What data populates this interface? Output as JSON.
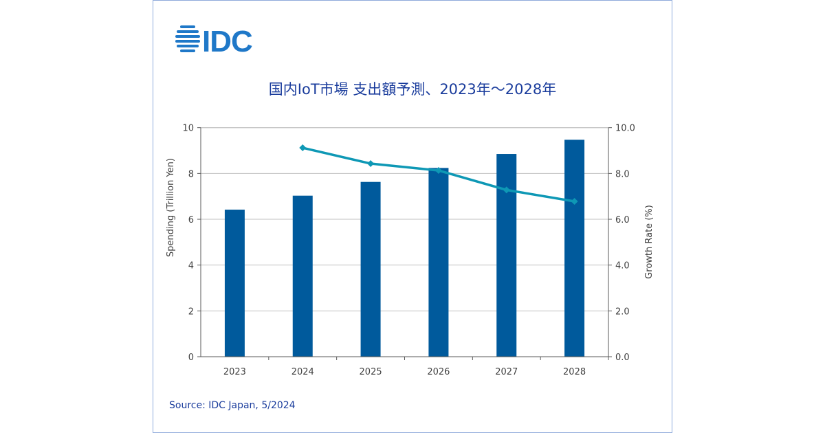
{
  "logo_text": "IDC",
  "colors": {
    "bar": "#005a9c",
    "line": "#0e98b5",
    "title": "#1a3c9c",
    "logo": "#1f78c8"
  },
  "chart_data": {
    "type": "bar+line",
    "title": "国内IoT市場 支出額予測、2023年～2028年",
    "categories": [
      "2023",
      "2024",
      "2025",
      "2026",
      "2027",
      "2028"
    ],
    "series": [
      {
        "type": "bar",
        "axis": "left",
        "values": [
          6.42,
          7.03,
          7.63,
          8.24,
          8.85,
          9.47
        ]
      },
      {
        "type": "line",
        "axis": "right",
        "values": [
          null,
          9.12,
          8.43,
          8.13,
          7.28,
          6.78
        ]
      }
    ],
    "ylabel": "Spending (Trillion Yen)",
    "ylabel_right": "Growth Rate (%)",
    "ylim": [
      0,
      10
    ],
    "ylim_right": [
      0,
      10
    ],
    "yticks": [
      "0",
      "2",
      "4",
      "6",
      "8",
      "10"
    ],
    "yticks_right": [
      "0.0",
      "2.0",
      "4.0",
      "6.0",
      "8.0",
      "10.0"
    ],
    "grid": true,
    "legend": "none"
  },
  "source": "Source: IDC Japan, 5/2024"
}
